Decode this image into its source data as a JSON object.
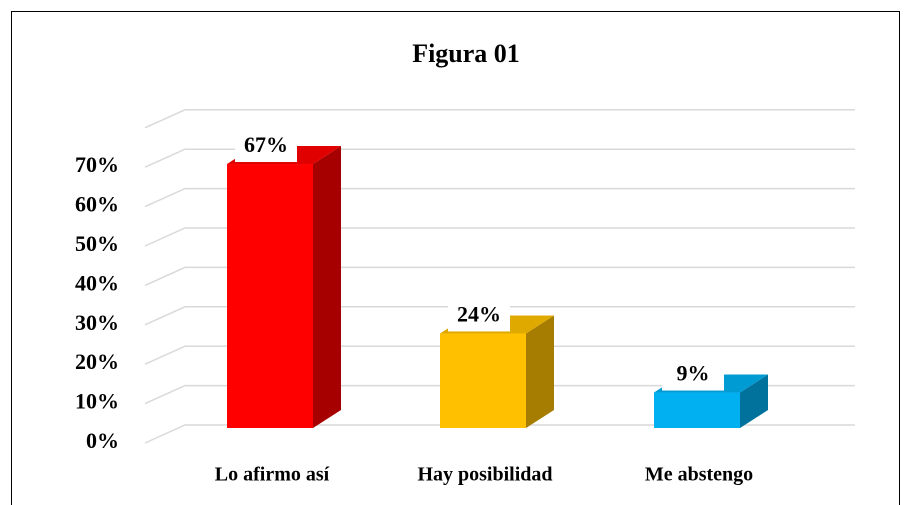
{
  "chart_data": {
    "type": "bar3d",
    "title": "Figura 01",
    "categories": [
      "Lo afirmo así",
      "Hay posibilidad",
      "Me abstengo"
    ],
    "values": [
      67,
      24,
      9
    ],
    "value_labels": [
      "67%",
      "24%",
      "9%"
    ],
    "colors": [
      "#ff0000",
      "#ffc000",
      "#00b0f0"
    ],
    "ylim": [
      0,
      80
    ],
    "yticks": [
      {
        "value": 0,
        "label": "0%"
      },
      {
        "value": 10,
        "label": "10%"
      },
      {
        "value": 20,
        "label": "20%"
      },
      {
        "value": 30,
        "label": "30%"
      },
      {
        "value": 40,
        "label": "40%"
      },
      {
        "value": 50,
        "label": "50%"
      },
      {
        "value": 60,
        "label": "60%"
      },
      {
        "value": 70,
        "label": "70%"
      }
    ],
    "grid": true
  }
}
